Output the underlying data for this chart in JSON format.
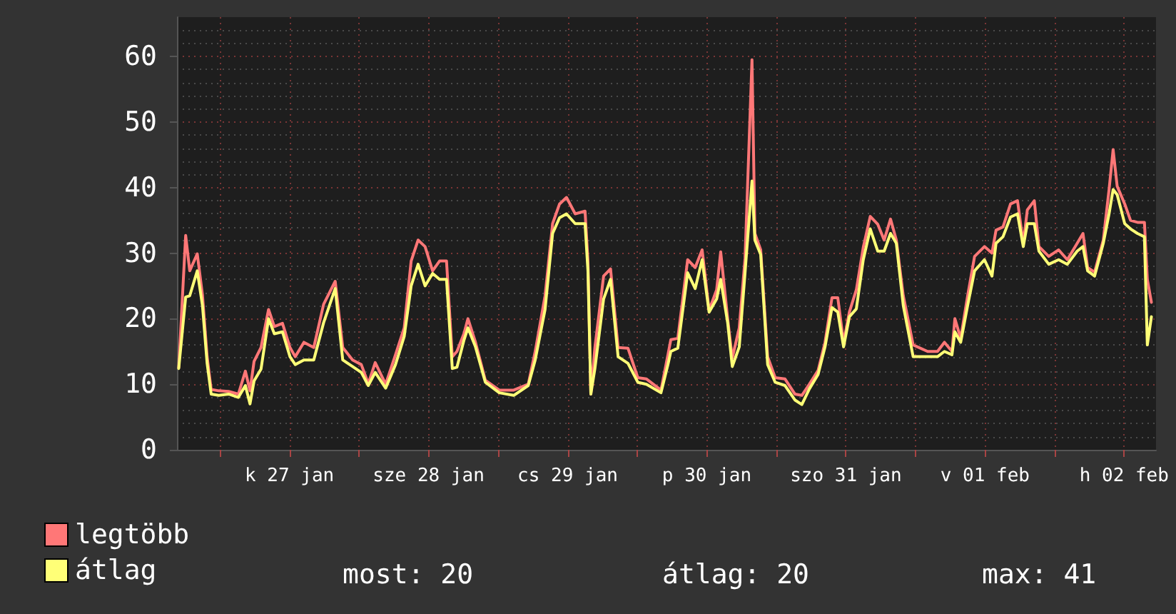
{
  "chart_data": {
    "type": "line",
    "x": [
      "--01-26T16:54",
      "--01-26T18:06",
      "--01-26T18:48",
      "--01-26T20:06",
      "--01-26T21:00",
      "--01-26T21:48",
      "--01-26T22:30",
      "--01-26T23:48",
      "--01-27T01:30",
      "--01-27T03:12",
      "--01-27T04:24",
      "--01-27T05:12",
      "--01-27T05:54",
      "--01-27T07:06",
      "--01-27T08:24",
      "--01-27T09:24",
      "--01-27T10:48",
      "--01-27T12:06",
      "--01-27T13:00",
      "--01-27T14:30",
      "--01-27T16:12",
      "--01-27T17:54",
      "--01-27T19:54",
      "--01-27T21:12",
      "--01-27T22:54",
      "--01-28T00:24",
      "--01-28T01:36",
      "--01-28T02:48",
      "--01-28T04:36",
      "--01-28T06:18",
      "--01-28T07:48",
      "--01-28T09:00",
      "--01-28T10:12",
      "--01-28T11:24",
      "--01-28T12:42",
      "--01-28T13:54",
      "--01-28T15:06",
      "--01-28T16:06",
      "--01-28T16:54",
      "--01-28T18:06",
      "--01-28T18:48",
      "--01-28T20:06",
      "--01-28T21:48",
      "--01-29T00:12",
      "--01-29T02:42",
      "--01-29T05:12",
      "--01-29T06:24",
      "--01-29T08:06",
      "--01-29T09:24",
      "--01-29T10:36",
      "--01-29T11:48",
      "--01-29T13:18",
      "--01-29T15:00",
      "--01-29T15:30",
      "--01-29T16:00",
      "--01-29T16:42",
      "--01-29T18:12",
      "--01-29T19:24",
      "--01-29T20:42",
      "--01-29T22:24",
      "--01-30T00:06",
      "--01-30T01:36",
      "--01-30T04:06",
      "--01-30T05:18",
      "--01-30T05:48",
      "--01-30T07:00",
      "--01-30T08:42",
      "--01-30T10:00",
      "--01-30T11:12",
      "--01-30T12:24",
      "--01-30T13:42",
      "--01-30T14:24",
      "--01-30T15:36",
      "--01-30T16:24",
      "--01-30T17:36",
      "--01-30T18:36",
      "--01-30T19:48",
      "--01-30T20:18",
      "--01-30T21:18",
      "--01-30T22:30",
      "--01-30T23:48",
      "--01-31T01:30",
      "--01-31T03:12",
      "--01-31T04:24",
      "--01-31T05:42",
      "--01-31T07:12",
      "--01-31T08:24",
      "--01-31T09:36",
      "--01-31T10:36",
      "--01-31T11:36",
      "--01-31T12:36",
      "--01-31T13:48",
      "--01-31T15:00",
      "--01-31T16:12",
      "--01-31T17:30",
      "--01-31T18:36",
      "--01-31T19:42",
      "--01-31T20:42",
      "--01-31T21:54",
      "--01-31T23:36",
      "--02-01T02:06",
      "--02-01T03:48",
      "--02-01T05:00",
      "--02-01T06:18",
      "--02-01T06:48",
      "--02-01T07:48",
      "--02-01T09:00",
      "--02-01T10:12",
      "--02-01T11:54",
      "--02-01T13:12",
      "--02-01T13:54",
      "--02-01T15:06",
      "--02-01T16:24",
      "--02-01T17:36",
      "--02-01T18:36",
      "--02-01T19:18",
      "--02-01T20:30",
      "--02-01T21:18",
      "--02-01T23:00",
      "--02-02T00:42",
      "--02-02T02:12",
      "--02-02T03:54",
      "--02-02T04:54",
      "--02-02T05:42",
      "--02-02T06:54",
      "--02-02T08:24",
      "--02-02T09:24",
      "--02-02T10:06",
      "--02-02T10:48",
      "--02-02T12:06",
      "--02-02T13:06",
      "--02-02T14:18",
      "--02-02T15:30",
      "--02-02T16:00",
      "--02-02T16:42"
    ],
    "series": [
      {
        "name": "legtöbb",
        "color": "#ff7777",
        "values": [
          12.5,
          32.7,
          27.3,
          29.9,
          23.6,
          14.2,
          9.2,
          9,
          8.9,
          8.5,
          12,
          9,
          13.5,
          15.6,
          21.4,
          18.8,
          19.3,
          15.6,
          14.2,
          16.4,
          15.6,
          22.2,
          25.7,
          15.6,
          13.7,
          13,
          10.1,
          13.3,
          10,
          14.5,
          18.6,
          28.8,
          32,
          31,
          27.3,
          28.8,
          28.8,
          14.2,
          15,
          17.7,
          20,
          16.4,
          10.6,
          9.1,
          9.1,
          10,
          15,
          23.5,
          34.5,
          37.5,
          38.5,
          36,
          36.4,
          28.8,
          8.5,
          15.6,
          26.5,
          27.6,
          15.6,
          15.5,
          11,
          10.8,
          9.1,
          14.5,
          16.8,
          17,
          29,
          27.8,
          30.5,
          21.3,
          24.4,
          30.2,
          20,
          14,
          18.6,
          29.2,
          59.5,
          33,
          30.5,
          14.2,
          11,
          10.8,
          8.5,
          8.3,
          10,
          12.1,
          16.4,
          23.2,
          23.2,
          16.4,
          21,
          24.4,
          30.9,
          35.6,
          34.4,
          32,
          35.2,
          32,
          23.5,
          16,
          15,
          15,
          16.4,
          15,
          20,
          17,
          23.5,
          29.5,
          31,
          30,
          33.5,
          34,
          37.5,
          38,
          31.5,
          36.6,
          38,
          31,
          29.5,
          30.5,
          29,
          31.5,
          33,
          27.8,
          27.1,
          32,
          39.7,
          45.8,
          40.2,
          37.5,
          35,
          34.7,
          34.7,
          26,
          22.5
        ]
      },
      {
        "name": "átlag",
        "color": "#ffff77",
        "values": [
          12.4,
          23.3,
          23.5,
          27.3,
          22,
          13.2,
          8.5,
          8.3,
          8.5,
          8,
          9.8,
          7,
          10.5,
          12.3,
          20,
          17.7,
          18,
          14.2,
          13,
          13.7,
          13.7,
          19.4,
          24.6,
          13.7,
          12.7,
          11.8,
          9.8,
          11.8,
          9.4,
          13,
          17.3,
          25,
          28.3,
          25,
          26.9,
          26,
          26,
          12.4,
          12.6,
          16.7,
          18.6,
          15.7,
          10.3,
          8.7,
          8.3,
          9.8,
          13.7,
          21.4,
          33,
          35.4,
          36,
          34.5,
          34.5,
          27.3,
          8.5,
          12.4,
          23,
          26,
          14.2,
          13.2,
          10.3,
          10,
          8.7,
          13,
          15,
          15.5,
          27,
          24.6,
          29,
          21,
          23,
          26,
          19.4,
          12.7,
          15.7,
          27,
          41,
          32,
          29.8,
          13,
          10.3,
          9.8,
          7.6,
          6.9,
          9.3,
          11.5,
          15.7,
          21.7,
          21,
          15.7,
          20.3,
          21.5,
          29,
          33.7,
          30.3,
          30.3,
          33,
          31.5,
          22,
          14.2,
          14.2,
          14.2,
          15,
          14.5,
          18,
          16.4,
          22,
          27.3,
          29,
          26.5,
          31.5,
          32.5,
          35.5,
          36,
          31,
          34.5,
          34.5,
          30.3,
          28.3,
          29,
          28.3,
          30.3,
          31,
          27.3,
          26.5,
          31.5,
          36,
          39.7,
          38.9,
          34.5,
          33.7,
          33,
          32.5,
          16,
          20.3
        ]
      }
    ],
    "xlim": [
      "--01-26T16:36",
      "--02-02T17:30"
    ],
    "xticks": [
      {
        "value": "--01-27",
        "label": null
      },
      {
        "value": "--01-27T12:00",
        "label": "k 27 jan"
      },
      {
        "value": "--01-28",
        "label": null
      },
      {
        "value": "--01-28T12:00",
        "label": "sze 28 jan"
      },
      {
        "value": "--01-29",
        "label": null
      },
      {
        "value": "--01-29T12:00",
        "label": "cs 29 jan"
      },
      {
        "value": "--01-30",
        "label": null
      },
      {
        "value": "--01-30T12:00",
        "label": "p 30 jan"
      },
      {
        "value": "--01-31",
        "label": null
      },
      {
        "value": "--01-31T12:00",
        "label": "szo 31 jan"
      },
      {
        "value": "--02-01",
        "label": null
      },
      {
        "value": "--02-01T12:00",
        "label": "v 01 feb"
      },
      {
        "value": "--02-02",
        "label": null
      },
      {
        "value": "--02-02T12:00",
        "label": "h 02 feb"
      }
    ],
    "ylim": [
      0,
      66
    ],
    "yticks": [
      0,
      10,
      20,
      30,
      40,
      50,
      60
    ],
    "grid": true,
    "marker": "none",
    "line_style": "solid",
    "legend": "bottom left",
    "annotations": [
      "most: 20",
      "átlag: 20",
      "max: 41"
    ]
  }
}
